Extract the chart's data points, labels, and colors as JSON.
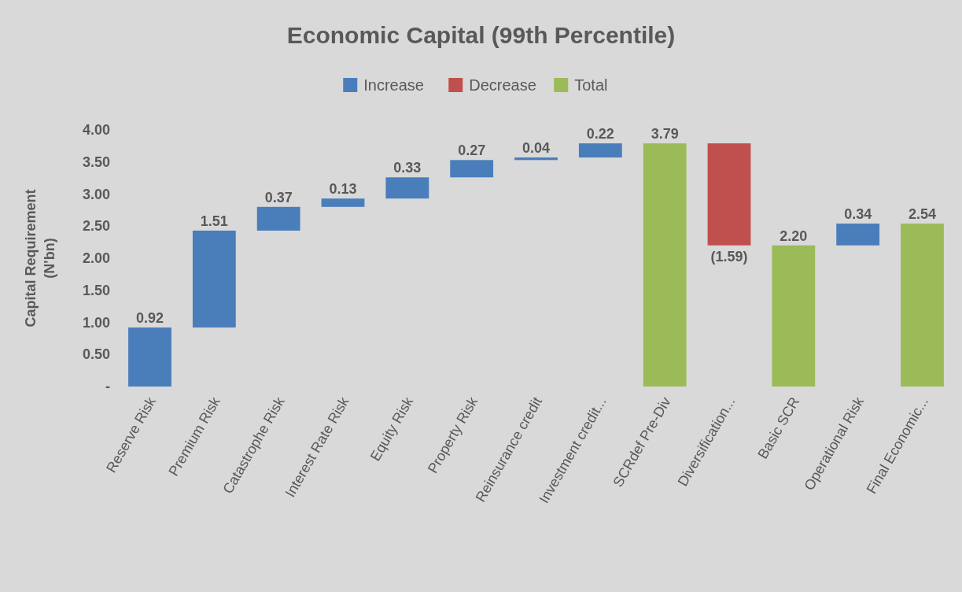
{
  "chart_data": {
    "type": "bar",
    "title": "Economic Capital (99th Percentile)",
    "ylabel": "Capital Requirement (N'bn)",
    "categories": [
      "Reserve Risk",
      "Premium Risk",
      "Catastrophe Risk",
      "Interest Rate Risk",
      "Equity Risk",
      "Property Risk",
      "Reinsurance credit",
      "Investment credit...",
      "SCRdef Pre-Div",
      "Diversification...",
      "Basic SCR",
      "Operational Risk",
      "Final Economic..."
    ],
    "series": [
      {
        "name": "Increase",
        "color": "#4a7ebb",
        "values": [
          0.92,
          1.51,
          0.37,
          0.13,
          0.33,
          0.27,
          0.04,
          0.22,
          null,
          null,
          null,
          0.34,
          null
        ],
        "base": [
          0,
          0.92,
          2.43,
          2.8,
          2.93,
          3.26,
          3.53,
          3.57,
          null,
          null,
          null,
          2.2,
          null
        ],
        "value_labels": [
          "0.92",
          "1.51",
          "0.37",
          "0.13",
          "0.33",
          "0.27",
          "0.04",
          "0.22",
          null,
          null,
          null,
          "0.34",
          null
        ]
      },
      {
        "name": "Decrease",
        "color": "#c0504d",
        "values": [
          null,
          null,
          null,
          null,
          null,
          null,
          null,
          null,
          null,
          -1.59,
          null,
          null,
          null
        ],
        "base": [
          null,
          null,
          null,
          null,
          null,
          null,
          null,
          null,
          null,
          3.79,
          null,
          null,
          null
        ],
        "value_labels": [
          null,
          null,
          null,
          null,
          null,
          null,
          null,
          null,
          null,
          "(1.59)",
          null,
          null,
          null
        ]
      },
      {
        "name": "Total",
        "color": "#9bbb59",
        "values": [
          null,
          null,
          null,
          null,
          null,
          null,
          null,
          null,
          3.79,
          null,
          2.2,
          null,
          2.54
        ],
        "base": [
          null,
          null,
          null,
          null,
          null,
          null,
          null,
          null,
          0,
          null,
          0,
          null,
          0
        ],
        "value_labels": [
          null,
          null,
          null,
          null,
          null,
          null,
          null,
          null,
          "3.79",
          null,
          "2.20",
          null,
          "2.54"
        ]
      }
    ],
    "ylim": [
      0,
      4
    ],
    "yticks": [
      {
        "value": 0,
        "label": "-"
      },
      {
        "value": 0.5,
        "label": "0.50"
      },
      {
        "value": 1,
        "label": "1.00"
      },
      {
        "value": 1.5,
        "label": "1.50"
      },
      {
        "value": 2,
        "label": "2.00"
      },
      {
        "value": 2.5,
        "label": "2.50"
      },
      {
        "value": 3,
        "label": "3.00"
      },
      {
        "value": 3.5,
        "label": "3.50"
      },
      {
        "value": 4,
        "label": "4.00"
      }
    ],
    "grid": false,
    "legend": "top"
  }
}
